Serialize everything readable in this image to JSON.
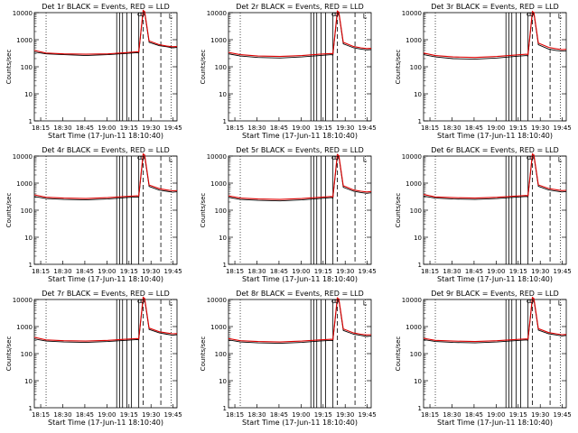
{
  "figure": {
    "start_time_label": "Start Time (17-Jun-11 18:10:40)",
    "ylabel": "Counts/sec"
  },
  "chart_data": [
    {
      "type": "line",
      "title": "Det 1r BLACK = Events, RED = LLD",
      "xlabel": "Start Time (17-Jun-11 18:10:40)",
      "ylabel": "Counts/sec",
      "y_scale": "log",
      "ylim": [
        1,
        10000
      ],
      "y_ticks": [
        "1",
        "10",
        "100",
        "1000",
        "10000"
      ],
      "x_ticks": [
        "18:15",
        "18:30",
        "18:45",
        "19:00",
        "19:15",
        "19:30",
        "19:45"
      ],
      "x_range_minutes": [
        0,
        97
      ],
      "series": [
        {
          "name": "Events",
          "color": "#000000",
          "x": [
            0,
            8,
            20,
            35,
            50,
            62,
            70,
            71,
            74,
            75,
            78,
            85,
            90,
            94,
            97
          ],
          "y": [
            350,
            300,
            280,
            260,
            280,
            310,
            330,
            320,
            11000,
            10000,
            800,
            600,
            550,
            500,
            520
          ]
        },
        {
          "name": "LLD",
          "color": "#dd0000",
          "x": [
            0,
            8,
            20,
            35,
            50,
            62,
            70,
            71,
            74,
            75,
            78,
            85,
            90,
            94,
            97
          ],
          "y": [
            400,
            320,
            300,
            290,
            300,
            330,
            360,
            350,
            12000,
            11000,
            900,
            650,
            580,
            550,
            560
          ]
        }
      ]
    },
    {
      "type": "line",
      "title": "Det 2r BLACK = Events, RED = LLD",
      "xlabel": "Start Time (17-Jun-11 18:10:40)",
      "ylabel": "Counts/sec",
      "y_scale": "log",
      "ylim": [
        1,
        10000
      ],
      "y_ticks": [
        "1",
        "10",
        "100",
        "1000",
        "10000"
      ],
      "x_ticks": [
        "18:15",
        "18:30",
        "18:45",
        "19:00",
        "19:15",
        "19:30",
        "19:45"
      ],
      "x_range_minutes": [
        0,
        97
      ],
      "series": [
        {
          "name": "Events",
          "color": "#000000",
          "x": [
            0,
            8,
            20,
            35,
            50,
            62,
            70,
            71,
            74,
            75,
            78,
            85,
            90,
            94,
            97
          ],
          "y": [
            300,
            250,
            220,
            210,
            230,
            260,
            280,
            270,
            10000,
            9500,
            700,
            500,
            450,
            420,
            430
          ]
        },
        {
          "name": "LLD",
          "color": "#dd0000",
          "x": [
            0,
            8,
            20,
            35,
            50,
            62,
            70,
            71,
            74,
            75,
            78,
            85,
            90,
            94,
            97
          ],
          "y": [
            340,
            280,
            250,
            240,
            260,
            290,
            310,
            300,
            11500,
            10500,
            800,
            560,
            500,
            470,
            480
          ]
        }
      ]
    },
    {
      "type": "line",
      "title": "Det 3r BLACK = Events, RED = LLD",
      "xlabel": "Start Time (17-Jun-11 18:10:40)",
      "ylabel": "Counts/sec",
      "y_scale": "log",
      "ylim": [
        1,
        10000
      ],
      "y_ticks": [
        "1",
        "10",
        "100",
        "1000",
        "10000"
      ],
      "x_ticks": [
        "18:15",
        "18:30",
        "18:45",
        "19:00",
        "19:15",
        "19:30",
        "19:45"
      ],
      "x_range_minutes": [
        0,
        97
      ],
      "series": [
        {
          "name": "Events",
          "color": "#000000",
          "x": [
            0,
            8,
            20,
            35,
            50,
            62,
            70,
            71,
            74,
            75,
            78,
            85,
            90,
            94,
            97
          ],
          "y": [
            280,
            230,
            200,
            190,
            210,
            240,
            260,
            250,
            9800,
            9200,
            650,
            450,
            400,
            380,
            390
          ]
        },
        {
          "name": "LLD",
          "color": "#dd0000",
          "x": [
            0,
            8,
            20,
            35,
            50,
            62,
            70,
            71,
            74,
            75,
            78,
            85,
            90,
            94,
            97
          ],
          "y": [
            320,
            260,
            230,
            220,
            240,
            270,
            290,
            280,
            11000,
            10000,
            750,
            520,
            460,
            430,
            440
          ]
        }
      ]
    },
    {
      "type": "line",
      "title": "Det 4r BLACK = Events, RED = LLD",
      "xlabel": "Start Time (17-Jun-11 18:10:40)",
      "ylabel": "Counts/sec",
      "y_scale": "log",
      "ylim": [
        1,
        10000
      ],
      "y_ticks": [
        "1",
        "10",
        "100",
        "1000",
        "10000"
      ],
      "x_ticks": [
        "18:15",
        "18:30",
        "18:45",
        "19:00",
        "19:15",
        "19:30",
        "19:45"
      ],
      "x_range_minutes": [
        0,
        97
      ],
      "series": [
        {
          "name": "Events",
          "color": "#000000",
          "x": [
            0,
            8,
            20,
            35,
            50,
            62,
            70,
            71,
            74,
            75,
            78,
            85,
            90,
            94,
            97
          ],
          "y": [
            320,
            270,
            250,
            240,
            260,
            290,
            310,
            300,
            10500,
            9800,
            750,
            550,
            500,
            460,
            480
          ]
        },
        {
          "name": "LLD",
          "color": "#dd0000",
          "x": [
            0,
            8,
            20,
            35,
            50,
            62,
            70,
            71,
            74,
            75,
            78,
            85,
            90,
            94,
            97
          ],
          "y": [
            370,
            300,
            280,
            270,
            290,
            320,
            340,
            330,
            12000,
            11000,
            850,
            620,
            560,
            520,
            530
          ]
        }
      ]
    },
    {
      "type": "line",
      "title": "Det 5r BLACK = Events, RED = LLD",
      "xlabel": "Start Time (17-Jun-11 18:10:40)",
      "ylabel": "Counts/sec",
      "y_scale": "log",
      "ylim": [
        1,
        10000
      ],
      "y_ticks": [
        "1",
        "10",
        "100",
        "1000",
        "10000"
      ],
      "x_ticks": [
        "18:15",
        "18:30",
        "18:45",
        "19:00",
        "19:15",
        "19:30",
        "19:45"
      ],
      "x_range_minutes": [
        0,
        97
      ],
      "series": [
        {
          "name": "Events",
          "color": "#000000",
          "x": [
            0,
            8,
            20,
            35,
            50,
            62,
            70,
            71,
            74,
            75,
            78,
            85,
            90,
            94,
            97
          ],
          "y": [
            300,
            250,
            230,
            220,
            240,
            270,
            290,
            280,
            10000,
            9500,
            700,
            500,
            450,
            420,
            440
          ]
        },
        {
          "name": "LLD",
          "color": "#dd0000",
          "x": [
            0,
            8,
            20,
            35,
            50,
            62,
            70,
            71,
            74,
            75,
            78,
            85,
            90,
            94,
            97
          ],
          "y": [
            340,
            280,
            260,
            250,
            270,
            300,
            320,
            310,
            11500,
            10500,
            800,
            560,
            500,
            470,
            490
          ]
        }
      ]
    },
    {
      "type": "line",
      "title": "Det 6r BLACK = Events, RED = LLD",
      "xlabel": "Start Time (17-Jun-11 18:10:40)",
      "ylabel": "Counts/sec",
      "y_scale": "log",
      "ylim": [
        1,
        10000
      ],
      "y_ticks": [
        "1",
        "10",
        "100",
        "1000",
        "10000"
      ],
      "x_ticks": [
        "18:15",
        "18:30",
        "18:45",
        "19:00",
        "19:15",
        "19:30",
        "19:45"
      ],
      "x_range_minutes": [
        0,
        97
      ],
      "series": [
        {
          "name": "Events",
          "color": "#000000",
          "x": [
            0,
            8,
            20,
            35,
            50,
            62,
            70,
            71,
            74,
            75,
            78,
            85,
            90,
            94,
            97
          ],
          "y": [
            330,
            280,
            260,
            250,
            270,
            300,
            320,
            310,
            10500,
            10000,
            760,
            560,
            510,
            470,
            490
          ]
        },
        {
          "name": "LLD",
          "color": "#dd0000",
          "x": [
            0,
            8,
            20,
            35,
            50,
            62,
            70,
            71,
            74,
            75,
            78,
            85,
            90,
            94,
            97
          ],
          "y": [
            380,
            310,
            290,
            280,
            300,
            330,
            350,
            340,
            12000,
            11000,
            860,
            630,
            570,
            530,
            540
          ]
        }
      ]
    },
    {
      "type": "line",
      "title": "Det 7r BLACK = Events, RED = LLD",
      "xlabel": "Start Time (17-Jun-11 18:10:40)",
      "ylabel": "Counts/sec",
      "y_scale": "log",
      "ylim": [
        1,
        10000
      ],
      "y_ticks": [
        "1",
        "10",
        "100",
        "1000",
        "10000"
      ],
      "x_ticks": [
        "18:15",
        "18:30",
        "18:45",
        "19:00",
        "19:15",
        "19:30",
        "19:45"
      ],
      "x_range_minutes": [
        0,
        97
      ],
      "series": [
        {
          "name": "Events",
          "color": "#000000",
          "x": [
            0,
            8,
            20,
            35,
            50,
            62,
            70,
            71,
            74,
            75,
            78,
            85,
            90,
            94,
            97
          ],
          "y": [
            350,
            290,
            270,
            260,
            280,
            310,
            330,
            320,
            10500,
            10000,
            780,
            580,
            520,
            480,
            500
          ]
        },
        {
          "name": "LLD",
          "color": "#dd0000",
          "x": [
            0,
            8,
            20,
            35,
            50,
            62,
            70,
            71,
            74,
            75,
            78,
            85,
            90,
            94,
            97
          ],
          "y": [
            400,
            320,
            300,
            290,
            310,
            340,
            360,
            350,
            12000,
            11000,
            880,
            640,
            580,
            540,
            550
          ]
        }
      ]
    },
    {
      "type": "line",
      "title": "Det 8r BLACK = Events, RED = LLD",
      "xlabel": "Start Time (17-Jun-11 18:10:40)",
      "ylabel": "Counts/sec",
      "y_scale": "log",
      "ylim": [
        1,
        10000
      ],
      "y_ticks": [
        "1",
        "10",
        "100",
        "1000",
        "10000"
      ],
      "x_ticks": [
        "18:15",
        "18:30",
        "18:45",
        "19:00",
        "19:15",
        "19:30",
        "19:45"
      ],
      "x_range_minutes": [
        0,
        97
      ],
      "series": [
        {
          "name": "Events",
          "color": "#000000",
          "x": [
            0,
            8,
            20,
            35,
            50,
            62,
            70,
            71,
            74,
            75,
            78,
            85,
            90,
            94,
            97
          ],
          "y": [
            320,
            270,
            250,
            240,
            260,
            290,
            310,
            300,
            10000,
            9500,
            720,
            520,
            470,
            430,
            450
          ]
        },
        {
          "name": "LLD",
          "color": "#dd0000",
          "x": [
            0,
            8,
            20,
            35,
            50,
            62,
            70,
            71,
            74,
            75,
            78,
            85,
            90,
            94,
            97
          ],
          "y": [
            360,
            300,
            280,
            270,
            290,
            320,
            340,
            330,
            11500,
            10500,
            820,
            580,
            520,
            490,
            500
          ]
        }
      ]
    },
    {
      "type": "line",
      "title": "Det 9r BLACK = Events, RED = LLD",
      "xlabel": "Start Time (17-Jun-11 18:10:40)",
      "ylabel": "Counts/sec",
      "y_scale": "log",
      "ylim": [
        1,
        10000
      ],
      "y_ticks": [
        "1",
        "10",
        "100",
        "1000",
        "10000"
      ],
      "x_ticks": [
        "18:15",
        "18:30",
        "18:45",
        "19:00",
        "19:15",
        "19:30",
        "19:45"
      ],
      "x_range_minutes": [
        0,
        97
      ],
      "series": [
        {
          "name": "Events",
          "color": "#000000",
          "x": [
            0,
            8,
            20,
            35,
            50,
            62,
            70,
            71,
            74,
            75,
            78,
            85,
            90,
            94,
            97
          ],
          "y": [
            330,
            280,
            260,
            250,
            270,
            300,
            320,
            310,
            10200,
            9700,
            740,
            540,
            490,
            450,
            470
          ]
        },
        {
          "name": "LLD",
          "color": "#dd0000",
          "x": [
            0,
            8,
            20,
            35,
            50,
            62,
            70,
            71,
            74,
            75,
            78,
            85,
            90,
            94,
            97
          ],
          "y": [
            370,
            310,
            290,
            280,
            300,
            330,
            350,
            340,
            11800,
            10800,
            840,
            600,
            540,
            500,
            510
          ]
        }
      ]
    }
  ]
}
